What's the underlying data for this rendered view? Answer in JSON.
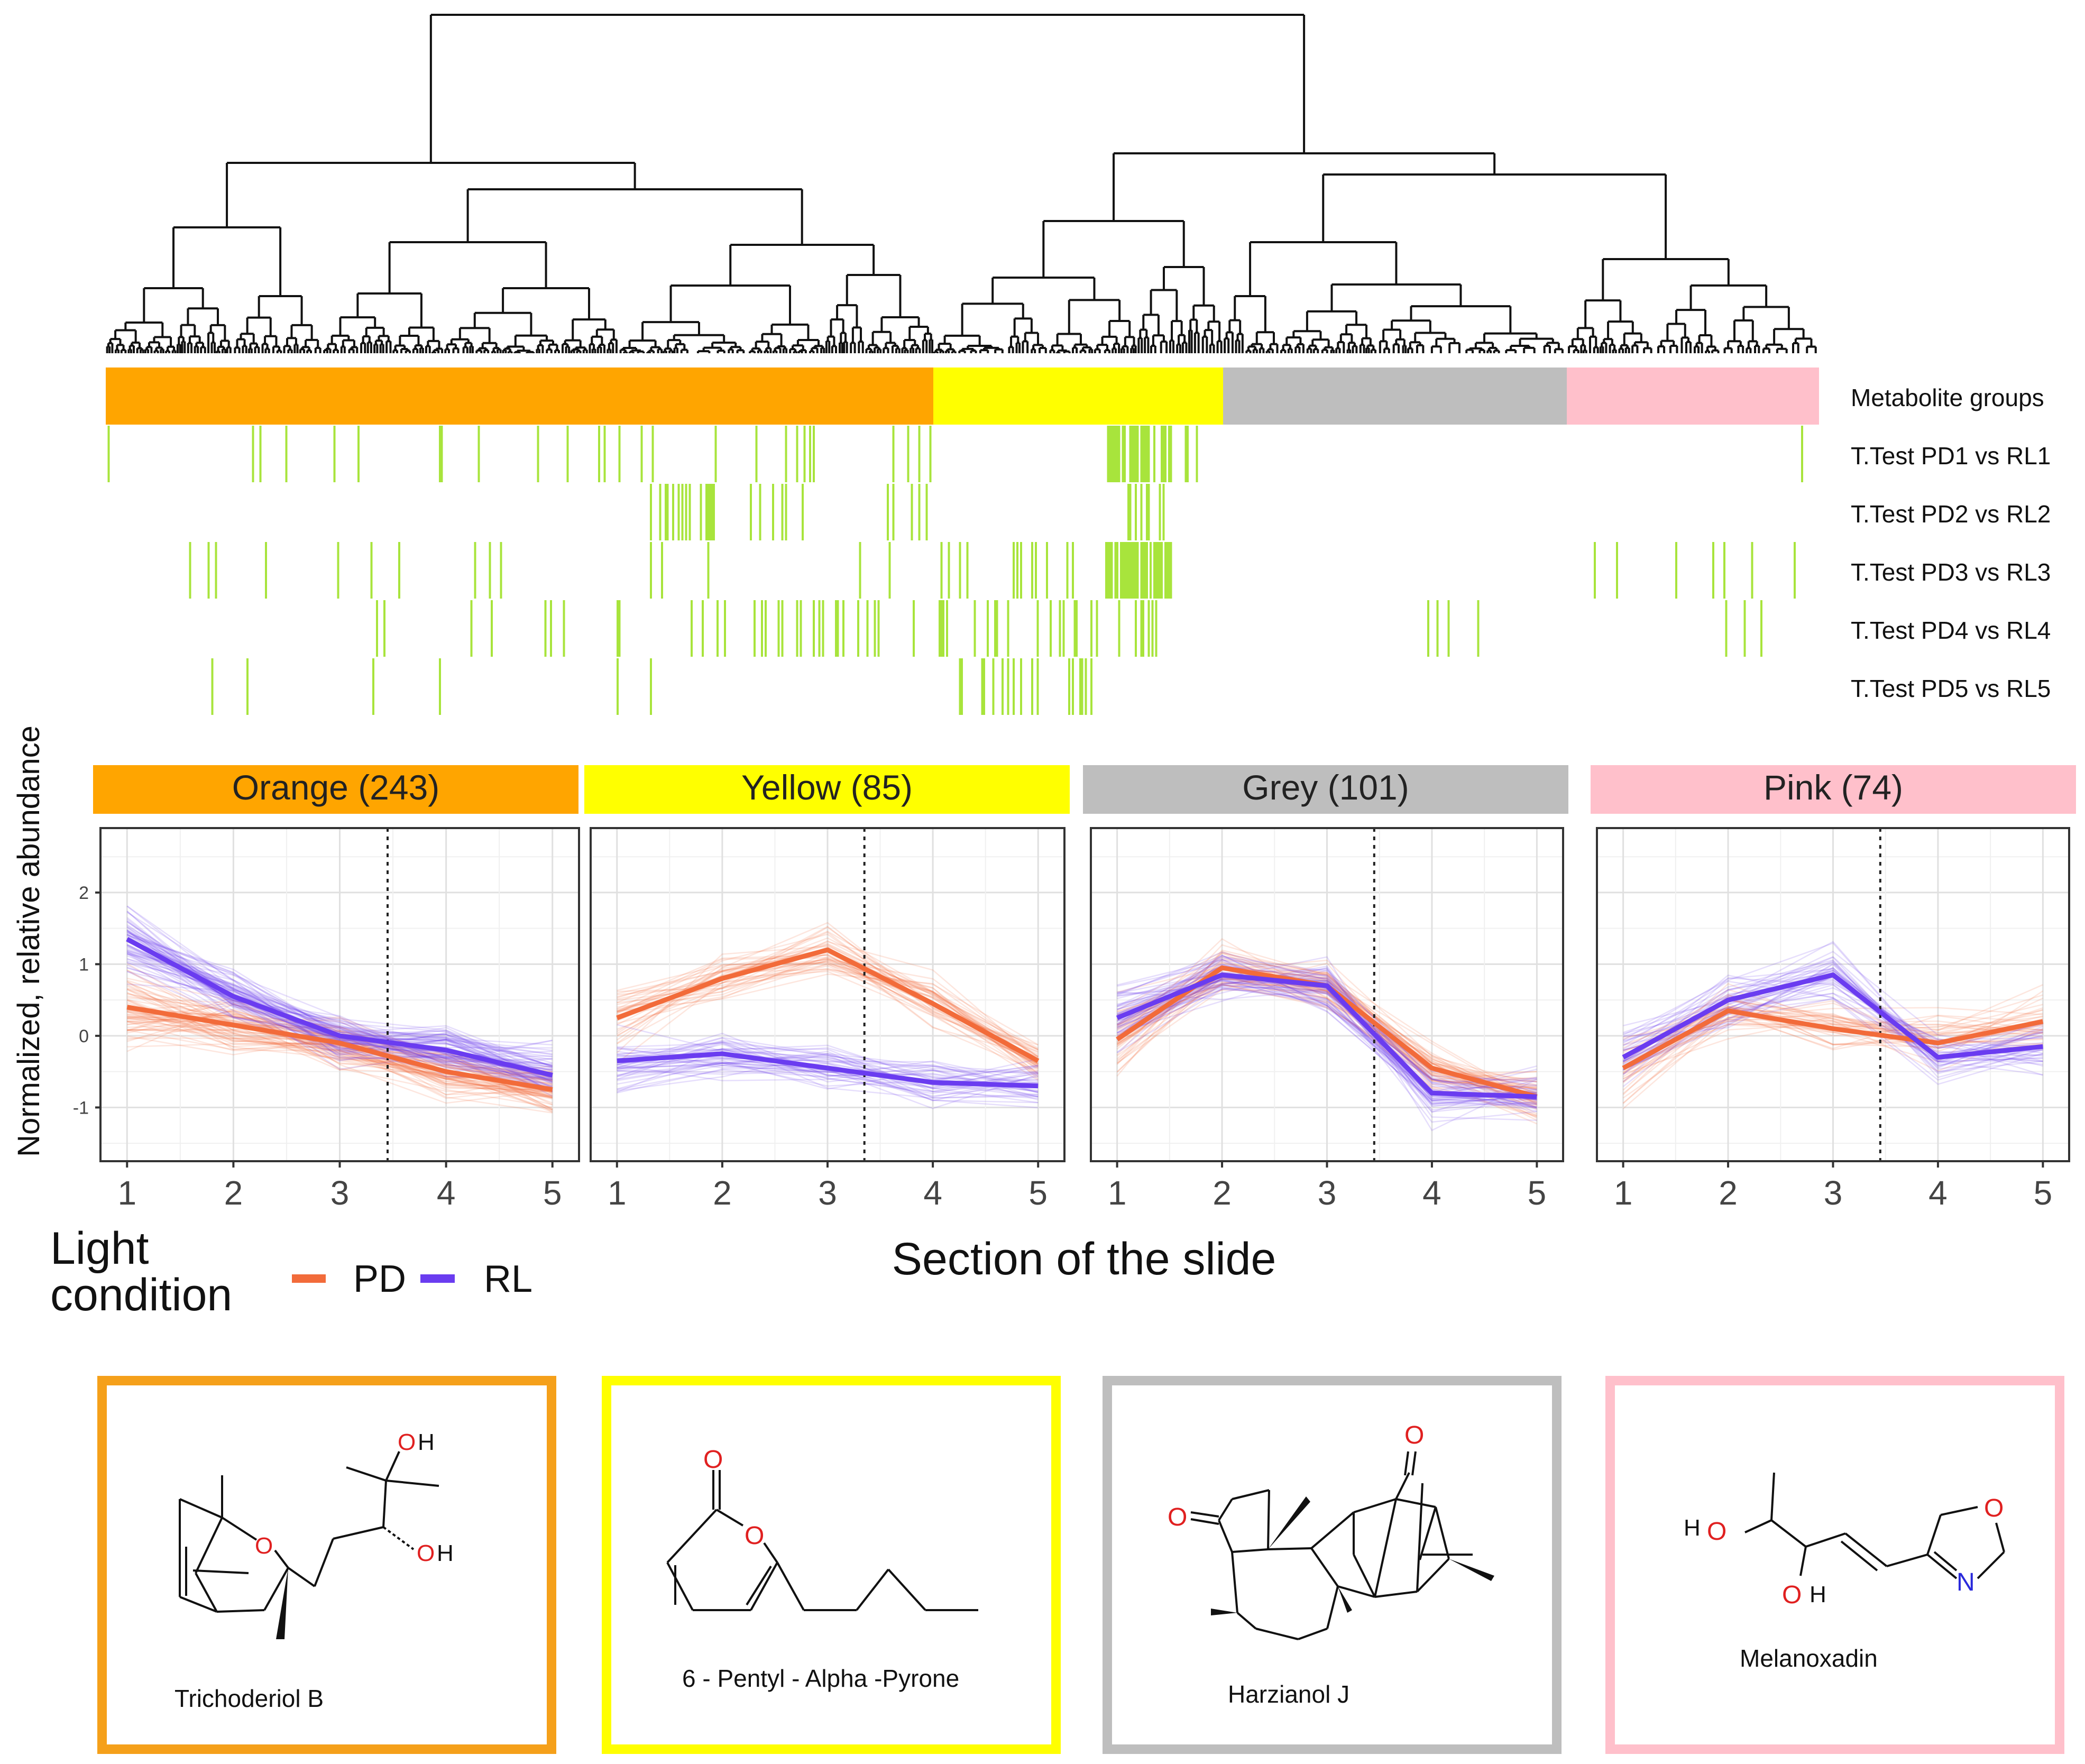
{
  "colors": {
    "orange": "#FFA500",
    "yellow": "#FFFF00",
    "grey": "#BEBEBE",
    "pink": "#FFC0CB",
    "green": "#A8E43C",
    "pd": "#F26B3A",
    "rl": "#6A3CF0"
  },
  "heatmap": {
    "row_labels": [
      "Metabolite groups",
      "T.Test PD1 vs RL1",
      "T.Test PD2 vs RL2",
      "T.Test PD3 vs RL3",
      "T.Test PD4 vs RL4",
      "T.Test PD5 vs RL5"
    ]
  },
  "legend": {
    "title_line1": "Light",
    "title_line2": "condition",
    "items": [
      "PD",
      "RL"
    ]
  },
  "chart_data": {
    "type": "line",
    "xlabel": "Section of the slide",
    "ylabel": "Normalized, relative abundance",
    "x": [
      1,
      2,
      3,
      4,
      5
    ],
    "xlim": [
      0.75,
      5.25
    ],
    "ylim": [
      -1.75,
      2.9
    ],
    "yticks": [
      -1,
      0,
      1,
      2
    ],
    "divider_x": 3.45,
    "panels": [
      {
        "key": "orange",
        "title": "Orange (243)",
        "n": 243,
        "divider_x": 3.45,
        "series": [
          {
            "name": "PD",
            "values": [
              0.4,
              0.15,
              -0.1,
              -0.5,
              -0.75
            ]
          },
          {
            "name": "RL",
            "values": [
              1.35,
              0.55,
              0.0,
              -0.2,
              -0.55
            ]
          }
        ]
      },
      {
        "key": "yellow",
        "title": "Yellow (85)",
        "n": 85,
        "divider_x": 3.35,
        "series": [
          {
            "name": "PD",
            "values": [
              0.25,
              0.8,
              1.2,
              0.45,
              -0.35
            ]
          },
          {
            "name": "RL",
            "values": [
              -0.35,
              -0.25,
              -0.45,
              -0.65,
              -0.7
            ]
          }
        ]
      },
      {
        "key": "grey",
        "title": "Grey (101)",
        "n": 101,
        "divider_x": 3.45,
        "series": [
          {
            "name": "PD",
            "values": [
              -0.05,
              0.95,
              0.7,
              -0.45,
              -0.85
            ]
          },
          {
            "name": "RL",
            "values": [
              0.25,
              0.85,
              0.7,
              -0.8,
              -0.85
            ]
          }
        ]
      },
      {
        "key": "pink",
        "title": "Pink (74)",
        "n": 74,
        "divider_x": 3.45,
        "series": [
          {
            "name": "PD",
            "values": [
              -0.45,
              0.35,
              0.1,
              -0.1,
              0.2
            ]
          },
          {
            "name": "RL",
            "values": [
              -0.3,
              0.5,
              0.85,
              -0.3,
              -0.15
            ]
          }
        ]
      }
    ]
  },
  "compounds": [
    {
      "key": "orange",
      "name": "Trichoderiol B",
      "atoms": [
        "O",
        "O",
        "H",
        "O",
        "H"
      ]
    },
    {
      "key": "yellow",
      "name": "6 - Pentyl - Alpha -Pyrone",
      "atoms": [
        "O",
        "O"
      ]
    },
    {
      "key": "grey",
      "name": "Harzianol J",
      "atoms": [
        "O",
        "O"
      ]
    },
    {
      "key": "pink",
      "name": "Melanoxadin",
      "atoms": [
        "H",
        "O",
        "O",
        "H",
        "O",
        "N"
      ]
    }
  ]
}
